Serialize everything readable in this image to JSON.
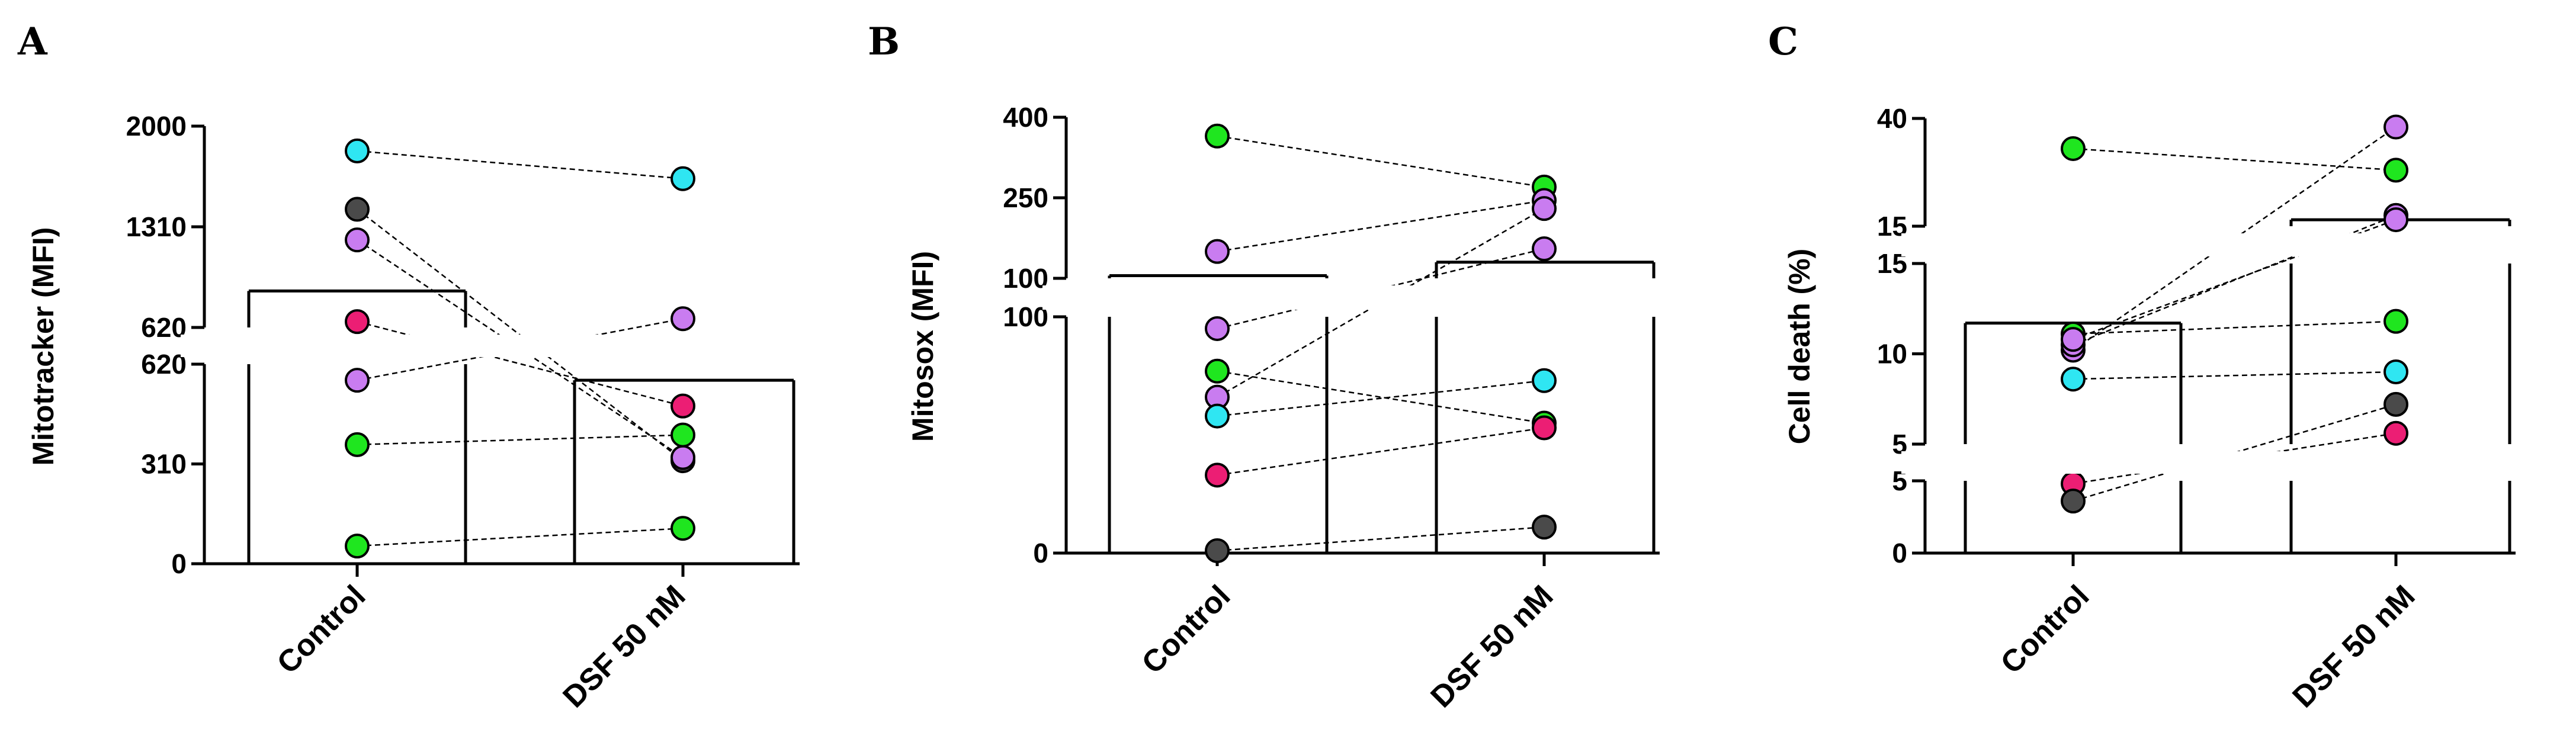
{
  "colors": {
    "cyan": "#2fe6f2",
    "dark": "#4a4a4a",
    "violet": "#c97cf0",
    "magenta": "#ec1e74",
    "green": "#1fe61f"
  },
  "chart_data": [
    {
      "panel": "A",
      "type": "bar",
      "ylabel": "Mitotracker (MFI)",
      "categories": [
        "Control",
        "DSF 50 nM"
      ],
      "bar_values": [
        870,
        570
      ],
      "axis_break": true,
      "ylim_lower": [
        0,
        620
      ],
      "ylim_upper": [
        620,
        2000
      ],
      "yticks_lower": [
        "0",
        "310",
        "620"
      ],
      "yticks_upper": [
        "620",
        "1310",
        "2000"
      ],
      "series": [
        {
          "color": "cyan",
          "values": [
            1830,
            1640
          ]
        },
        {
          "color": "dark",
          "values": [
            1430,
            320
          ]
        },
        {
          "color": "violet",
          "values": [
            1220,
            330
          ]
        },
        {
          "color": "magenta",
          "values": [
            660,
            490
          ]
        },
        {
          "color": "violet",
          "values": [
            570,
            680
          ]
        },
        {
          "color": "green",
          "values": [
            370,
            400
          ]
        },
        {
          "color": "green",
          "values": [
            55,
            110
          ]
        }
      ]
    },
    {
      "panel": "B",
      "type": "bar",
      "ylabel": "Mitosox (MFI)",
      "categories": [
        "Control",
        "DSF 50 nM"
      ],
      "bar_values": [
        105,
        130
      ],
      "axis_break": true,
      "ylim_lower": [
        0,
        100
      ],
      "ylim_upper": [
        100,
        400
      ],
      "yticks_lower": [
        "0",
        "100"
      ],
      "yticks_upper": [
        "100",
        "250",
        "400"
      ],
      "series": [
        {
          "color": "green",
          "values": [
            365,
            270
          ]
        },
        {
          "color": "violet",
          "values": [
            150,
            245
          ]
        },
        {
          "color": "violet",
          "values": [
            95,
            155
          ]
        },
        {
          "color": "green",
          "values": [
            77,
            55
          ]
        },
        {
          "color": "violet",
          "values": [
            66,
            230
          ]
        },
        {
          "color": "cyan",
          "values": [
            58,
            73
          ]
        },
        {
          "color": "magenta",
          "values": [
            33,
            53
          ]
        },
        {
          "color": "dark",
          "values": [
            1,
            11
          ]
        }
      ]
    },
    {
      "panel": "C",
      "type": "bar",
      "ylabel": "Cell death (%)",
      "categories": [
        "Control",
        "DSF 50 nM"
      ],
      "bar_values": [
        11.7,
        16.5
      ],
      "axis_break": true,
      "ylim_lower": [
        0,
        5
      ],
      "ylim_middle": [
        5,
        15
      ],
      "ylim_upper": [
        15,
        40
      ],
      "yticks_lower": [
        "0",
        "5"
      ],
      "yticks_middle": [
        "5",
        "10",
        "15"
      ],
      "yticks_upper": [
        "15",
        "40"
      ],
      "series": [
        {
          "color": "green",
          "values": [
            33,
            28
          ]
        },
        {
          "color": "violet",
          "values": [
            10.2,
            38
          ]
        },
        {
          "color": "violet",
          "values": [
            10.5,
            17.5
          ]
        },
        {
          "color": "green",
          "values": [
            11.1,
            11.8
          ]
        },
        {
          "color": "violet",
          "values": [
            10.8,
            16.5
          ]
        },
        {
          "color": "cyan",
          "values": [
            8.6,
            9
          ]
        },
        {
          "color": "magenta",
          "values": [
            4.8,
            5.6
          ]
        },
        {
          "color": "dark",
          "values": [
            3.6,
            7.2
          ]
        }
      ]
    }
  ]
}
